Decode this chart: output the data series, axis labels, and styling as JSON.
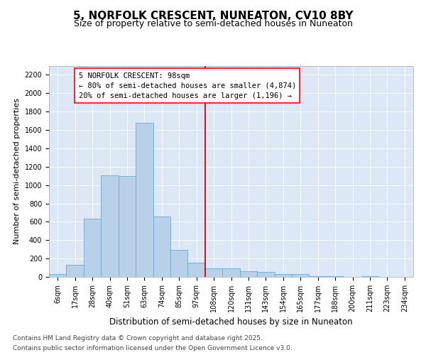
{
  "title": "5, NORFOLK CRESCENT, NUNEATON, CV10 8BY",
  "subtitle": "Size of property relative to semi-detached houses in Nuneaton",
  "xlabel": "Distribution of semi-detached houses by size in Nuneaton",
  "ylabel": "Number of semi-detached properties",
  "categories": [
    "6sqm",
    "17sqm",
    "28sqm",
    "40sqm",
    "51sqm",
    "63sqm",
    "74sqm",
    "85sqm",
    "97sqm",
    "108sqm",
    "120sqm",
    "131sqm",
    "143sqm",
    "154sqm",
    "165sqm",
    "177sqm",
    "188sqm",
    "200sqm",
    "211sqm",
    "223sqm",
    "234sqm"
  ],
  "values": [
    30,
    130,
    635,
    1105,
    1100,
    1680,
    660,
    290,
    155,
    95,
    90,
    65,
    55,
    30,
    28,
    10,
    8,
    0,
    5,
    0,
    0
  ],
  "bar_color": "#b8d0e8",
  "bar_edge_color": "#6aaad4",
  "vline_color": "#cc0000",
  "annotation_text": "5 NORFOLK CRESCENT: 98sqm\n← 80% of semi-detached houses are smaller (4,874)\n20% of semi-detached houses are larger (1,196) →",
  "footnote1": "Contains HM Land Registry data © Crown copyright and database right 2025.",
  "footnote2": "Contains public sector information licensed under the Open Government Licence v3.0.",
  "ylim": [
    0,
    2300
  ],
  "yticks": [
    0,
    200,
    400,
    600,
    800,
    1000,
    1200,
    1400,
    1600,
    1800,
    2000,
    2200
  ],
  "vline_pos": 8.5,
  "title_fontsize": 11,
  "subtitle_fontsize": 9,
  "annotation_fontsize": 7.5,
  "tick_fontsize": 7,
  "ylabel_fontsize": 8,
  "xlabel_fontsize": 8.5,
  "footnote_fontsize": 6.5,
  "fig_bg": "#ffffff",
  "plot_bg": "#dce8f5"
}
